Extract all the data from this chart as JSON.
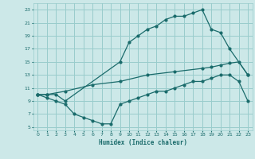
{
  "xlabel": "Humidex (Indice chaleur)",
  "bg_color": "#cce8e8",
  "grid_color": "#99cccc",
  "line_color": "#1a6b6b",
  "xlim": [
    -0.5,
    23.5
  ],
  "ylim": [
    4.5,
    24
  ],
  "xticks": [
    0,
    1,
    2,
    3,
    4,
    5,
    6,
    7,
    8,
    9,
    10,
    11,
    12,
    13,
    14,
    15,
    16,
    17,
    18,
    19,
    20,
    21,
    22,
    23
  ],
  "yticks": [
    5,
    7,
    9,
    11,
    13,
    15,
    17,
    19,
    21,
    23
  ],
  "line1_x": [
    0,
    1,
    2,
    3,
    9,
    10,
    11,
    12,
    13,
    14,
    15,
    16,
    17,
    18,
    19,
    20,
    21,
    23
  ],
  "line1_y": [
    10,
    10,
    10,
    9,
    15,
    18,
    19,
    20,
    20.5,
    21.5,
    22,
    22,
    22.5,
    23,
    20,
    19.5,
    17,
    13
  ],
  "line2_x": [
    0,
    1,
    3,
    6,
    9,
    12,
    15,
    18,
    19,
    20,
    21,
    22,
    23
  ],
  "line2_y": [
    10,
    10,
    10.5,
    11.5,
    12,
    13,
    13.5,
    14,
    14.2,
    14.5,
    14.8,
    15,
    13
  ],
  "line3_x": [
    0,
    1,
    2,
    3,
    4,
    5,
    6,
    7,
    8,
    9,
    10,
    11,
    12,
    13,
    14,
    15,
    16,
    17,
    18,
    19,
    20,
    21,
    22,
    23
  ],
  "line3_y": [
    10,
    9.5,
    9,
    8.5,
    7,
    6.5,
    6,
    5.5,
    5.5,
    8.5,
    9,
    9.5,
    10,
    10.5,
    10.5,
    11,
    11.5,
    12,
    12,
    12.5,
    13,
    13,
    12,
    9
  ]
}
